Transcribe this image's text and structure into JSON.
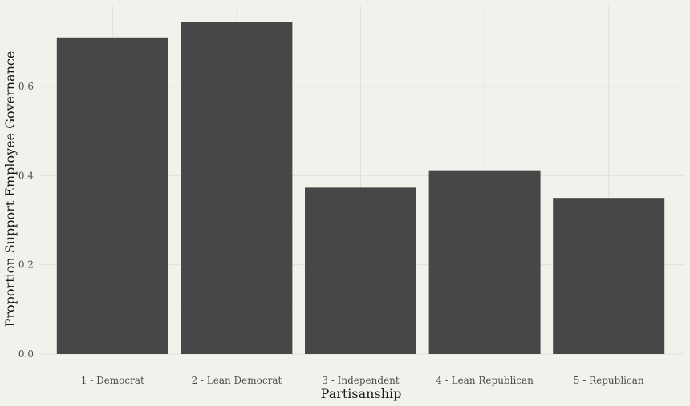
{
  "chart_data": {
    "type": "bar",
    "categories": [
      "1 - Democrat",
      "2 - Lean Democrat",
      "3 - Independent",
      "4 - Lean Republican",
      "5 - Republican"
    ],
    "values": [
      0.71,
      0.745,
      0.373,
      0.412,
      0.35
    ],
    "xlabel": "Partisanship",
    "ylabel": "Proportion Support Employee Governance",
    "ylim": [
      0,
      0.75
    ],
    "yticks": [
      0.0,
      0.2,
      0.4,
      0.6
    ],
    "ytick_labels": [
      "0.0",
      "0.2",
      "0.4",
      "0.6"
    ],
    "grid": true,
    "legend": "none"
  },
  "colors": {
    "background": "#f2f2ed",
    "bar": "#474747",
    "grid": "#e2e2dc"
  }
}
